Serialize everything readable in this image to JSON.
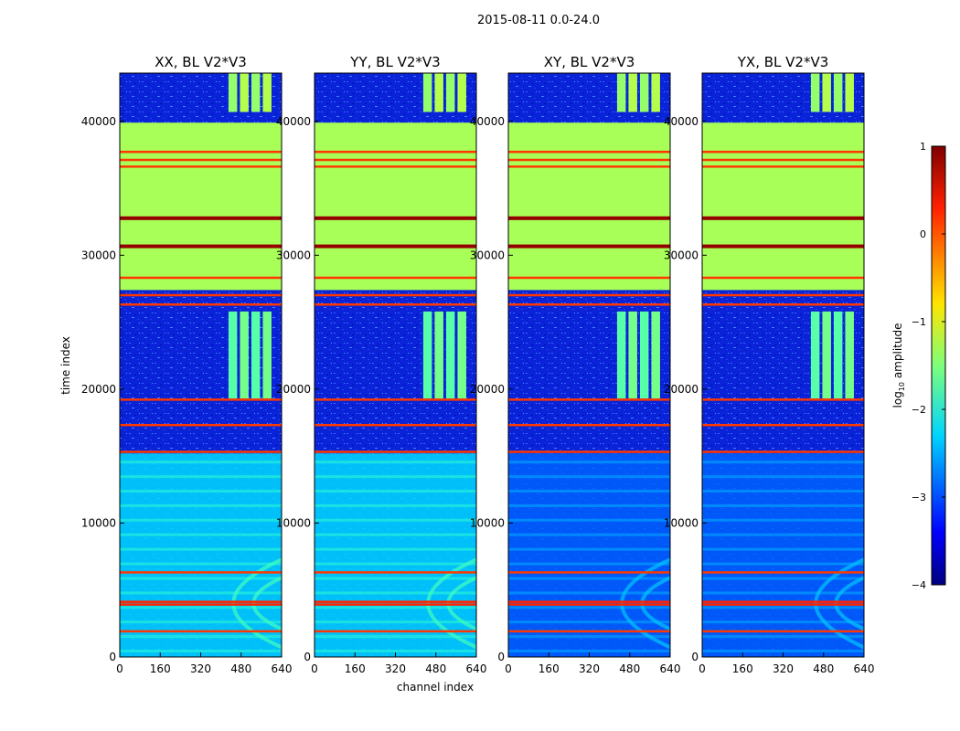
{
  "chart_data": {
    "type": "heatmap",
    "title": "2015-08-11 0.0-24.0",
    "xlabel": "channel index",
    "ylabel": "time index",
    "xlim": [
      0,
      640
    ],
    "ylim": [
      0,
      43600
    ],
    "x_ticks": [
      0,
      160,
      320,
      480,
      640
    ],
    "y_ticks": [
      0,
      10000,
      20000,
      30000,
      40000
    ],
    "panels": [
      {
        "title": "XX, BL V2*V3",
        "pol": "XX"
      },
      {
        "title": "YY, BL V2*V3",
        "pol": "YY"
      },
      {
        "title": "XY, BL V2*V3",
        "pol": "XY"
      },
      {
        "title": "YX, BL V2*V3",
        "pol": "YX"
      }
    ],
    "colorbar": {
      "label": "log10 amplitude",
      "label_main": "log",
      "label_sub": "10",
      "label_rest": " amplitude",
      "min": -4,
      "max": 1,
      "ticks": [
        1,
        0,
        -1,
        -2,
        -3,
        -4
      ],
      "tick_labels": [
        "1",
        "0",
        "−1",
        "−2",
        "−3",
        "−4"
      ]
    },
    "segments": [
      {
        "name": "flagged-block",
        "t_start": 27400,
        "t_end": 39900,
        "log_amp": -1.3
      },
      {
        "name": "rfi-block-top",
        "t_start": 40700,
        "t_end": 43600,
        "channels": [
          430,
          600
        ],
        "log_amp": -1.4
      },
      {
        "name": "rfi-block-mid",
        "t_start": 19300,
        "t_end": 25800,
        "channels": [
          430,
          600
        ],
        "log_amp": -1.7
      },
      {
        "name": "fringe-region",
        "t_start": 0,
        "t_end": 15200,
        "log_amp": -2.3
      }
    ],
    "flag_lines": [
      {
        "t": 37700,
        "log_amp": 0.1
      },
      {
        "t": 37100,
        "log_amp": 0.1
      },
      {
        "t": 36600,
        "log_amp": 0.1
      },
      {
        "t": 32800,
        "log_amp": 0.9
      },
      {
        "t": 30700,
        "log_amp": 0.9
      },
      {
        "t": 28300,
        "log_amp": 0.1
      },
      {
        "t": 27000,
        "log_amp": 0.1
      },
      {
        "t": 26300,
        "log_amp": 0.1
      },
      {
        "t": 19200,
        "log_amp": 0.1
      },
      {
        "t": 17300,
        "log_amp": 0.1
      },
      {
        "t": 15300,
        "log_amp": 0.1
      },
      {
        "t": 6300,
        "log_amp": 0.1
      },
      {
        "t": 4100,
        "log_amp": 0.2
      },
      {
        "t": 3900,
        "log_amp": 0.2
      },
      {
        "t": 1900,
        "log_amp": 0.1
      }
    ]
  }
}
